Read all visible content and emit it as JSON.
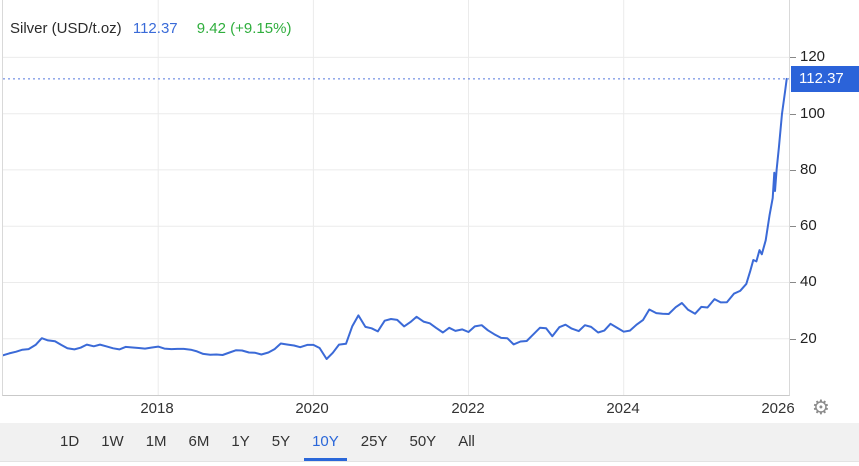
{
  "header": {
    "title": "Silver (USD/t.oz)",
    "price": "112.37",
    "change": "9.42 (+9.15%)"
  },
  "price_badge": "112.37",
  "gear_icon": "⚙",
  "colors": {
    "line": "#3b6ad7",
    "dotted": "#5577dd",
    "grid": "#ebebeb",
    "badge_bg": "#2b63d9",
    "price_text": "#3a6bd8",
    "change_text": "#2fae3d",
    "selected_range": "#2a67d9"
  },
  "toolbar": {
    "ranges": [
      {
        "label": "1D",
        "selected": false
      },
      {
        "label": "1W",
        "selected": false
      },
      {
        "label": "1M",
        "selected": false
      },
      {
        "label": "6M",
        "selected": false
      },
      {
        "label": "1Y",
        "selected": false
      },
      {
        "label": "5Y",
        "selected": false
      },
      {
        "label": "10Y",
        "selected": true
      },
      {
        "label": "25Y",
        "selected": false
      },
      {
        "label": "50Y",
        "selected": false
      },
      {
        "label": "All",
        "selected": false
      }
    ]
  },
  "chart_data": {
    "type": "line",
    "title": "Silver (USD/t.oz)",
    "series_name": "Silver spot price, USD per troy ounce, 10Y",
    "current_price": 112.37,
    "xlim": [
      2016.0,
      2026.13
    ],
    "ylim": [
      0,
      140.4
    ],
    "x_ticks": [
      2018,
      2020,
      2022,
      2024,
      2026
    ],
    "x_tick_labels": [
      "2018",
      "2020",
      "2022",
      "2024",
      "2026"
    ],
    "x_grid_years": [
      2018,
      2020,
      2022,
      2024
    ],
    "y_ticks": [
      20,
      40,
      60,
      80,
      100,
      120
    ],
    "grid": true,
    "legend": "none",
    "points": [
      [
        2016.0,
        14.1
      ],
      [
        2016.08,
        14.8
      ],
      [
        2016.17,
        15.4
      ],
      [
        2016.25,
        16.1
      ],
      [
        2016.33,
        16.3
      ],
      [
        2016.42,
        17.8
      ],
      [
        2016.5,
        20.2
      ],
      [
        2016.58,
        19.4
      ],
      [
        2016.67,
        19.1
      ],
      [
        2016.75,
        17.8
      ],
      [
        2016.83,
        16.6
      ],
      [
        2016.92,
        16.2
      ],
      [
        2017.0,
        16.8
      ],
      [
        2017.08,
        17.9
      ],
      [
        2017.17,
        17.3
      ],
      [
        2017.25,
        17.9
      ],
      [
        2017.33,
        17.3
      ],
      [
        2017.42,
        16.6
      ],
      [
        2017.5,
        16.2
      ],
      [
        2017.58,
        17.1
      ],
      [
        2017.67,
        16.9
      ],
      [
        2017.75,
        16.7
      ],
      [
        2017.83,
        16.5
      ],
      [
        2017.92,
        16.9
      ],
      [
        2018.0,
        17.2
      ],
      [
        2018.08,
        16.5
      ],
      [
        2018.17,
        16.3
      ],
      [
        2018.25,
        16.4
      ],
      [
        2018.33,
        16.4
      ],
      [
        2018.42,
        16.1
      ],
      [
        2018.5,
        15.5
      ],
      [
        2018.58,
        14.6
      ],
      [
        2018.67,
        14.3
      ],
      [
        2018.75,
        14.4
      ],
      [
        2018.83,
        14.2
      ],
      [
        2018.92,
        15.1
      ],
      [
        2019.0,
        15.9
      ],
      [
        2019.08,
        15.8
      ],
      [
        2019.17,
        15.1
      ],
      [
        2019.25,
        15.0
      ],
      [
        2019.33,
        14.4
      ],
      [
        2019.42,
        15.1
      ],
      [
        2019.5,
        16.3
      ],
      [
        2019.58,
        18.3
      ],
      [
        2019.67,
        17.9
      ],
      [
        2019.75,
        17.6
      ],
      [
        2019.83,
        17.0
      ],
      [
        2019.92,
        17.8
      ],
      [
        2020.0,
        17.8
      ],
      [
        2020.08,
        16.7
      ],
      [
        2020.17,
        12.8
      ],
      [
        2020.25,
        15.0
      ],
      [
        2020.33,
        17.9
      ],
      [
        2020.42,
        18.2
      ],
      [
        2020.5,
        24.4
      ],
      [
        2020.58,
        28.3
      ],
      [
        2020.67,
        24.2
      ],
      [
        2020.75,
        23.7
      ],
      [
        2020.83,
        22.6
      ],
      [
        2020.92,
        26.4
      ],
      [
        2021.0,
        27.0
      ],
      [
        2021.08,
        26.7
      ],
      [
        2021.17,
        24.4
      ],
      [
        2021.25,
        25.9
      ],
      [
        2021.33,
        27.8
      ],
      [
        2021.42,
        26.1
      ],
      [
        2021.5,
        25.5
      ],
      [
        2021.58,
        23.9
      ],
      [
        2021.67,
        22.2
      ],
      [
        2021.75,
        23.9
      ],
      [
        2021.83,
        22.8
      ],
      [
        2021.92,
        23.3
      ],
      [
        2022.0,
        22.4
      ],
      [
        2022.08,
        24.4
      ],
      [
        2022.17,
        24.8
      ],
      [
        2022.25,
        23.0
      ],
      [
        2022.33,
        21.6
      ],
      [
        2022.42,
        20.3
      ],
      [
        2022.5,
        20.2
      ],
      [
        2022.58,
        18.0
      ],
      [
        2022.67,
        19.0
      ],
      [
        2022.75,
        19.2
      ],
      [
        2022.83,
        21.4
      ],
      [
        2022.92,
        23.9
      ],
      [
        2023.0,
        23.7
      ],
      [
        2023.08,
        20.9
      ],
      [
        2023.17,
        24.1
      ],
      [
        2023.25,
        25.0
      ],
      [
        2023.33,
        23.6
      ],
      [
        2023.42,
        22.7
      ],
      [
        2023.5,
        24.8
      ],
      [
        2023.58,
        24.2
      ],
      [
        2023.67,
        22.2
      ],
      [
        2023.75,
        22.9
      ],
      [
        2023.83,
        25.3
      ],
      [
        2023.92,
        23.8
      ],
      [
        2024.0,
        22.5
      ],
      [
        2024.08,
        22.9
      ],
      [
        2024.17,
        25.1
      ],
      [
        2024.25,
        26.7
      ],
      [
        2024.33,
        30.4
      ],
      [
        2024.42,
        29.1
      ],
      [
        2024.5,
        28.9
      ],
      [
        2024.58,
        28.8
      ],
      [
        2024.67,
        31.2
      ],
      [
        2024.75,
        32.7
      ],
      [
        2024.83,
        30.3
      ],
      [
        2024.92,
        28.9
      ],
      [
        2025.0,
        31.3
      ],
      [
        2025.08,
        31.1
      ],
      [
        2025.17,
        34.1
      ],
      [
        2025.25,
        32.9
      ],
      [
        2025.33,
        33.0
      ],
      [
        2025.42,
        36.0
      ],
      [
        2025.5,
        37.0
      ],
      [
        2025.58,
        39.5
      ],
      [
        2025.63,
        44.0
      ],
      [
        2025.67,
        48.0
      ],
      [
        2025.71,
        47.5
      ],
      [
        2025.75,
        51.5
      ],
      [
        2025.78,
        50.0
      ],
      [
        2025.83,
        55.0
      ],
      [
        2025.88,
        64.0
      ],
      [
        2025.92,
        70.0
      ],
      [
        2025.94,
        79.0
      ],
      [
        2025.95,
        72.5
      ],
      [
        2025.97,
        80.0
      ],
      [
        2026.0,
        88.0
      ],
      [
        2026.04,
        100.0
      ],
      [
        2026.08,
        108.0
      ],
      [
        2026.1,
        112.37
      ]
    ]
  }
}
